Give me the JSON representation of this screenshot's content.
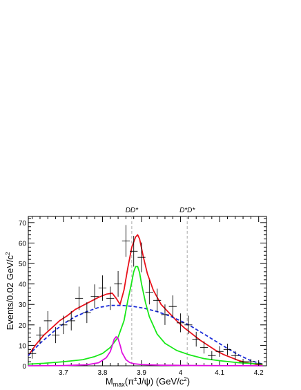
{
  "chart_data": {
    "type": "scatter",
    "xlabel_main": "M",
    "xlabel_sub": "max",
    "xlabel_rest": "(π",
    "xlabel_sup": "±",
    "xlabel_tail": "J/ψ) (GeV/c",
    "xlabel_sup2": "2",
    "xlabel_close": ")",
    "ylabel_main": "Events/0.02 GeV/c",
    "ylabel_sup": "2",
    "xlim": [
      3.61,
      4.22
    ],
    "ylim": [
      0,
      73
    ],
    "x_ticks": [
      3.7,
      3.8,
      3.9,
      4.0,
      4.1,
      4.2
    ],
    "x_tick_labels": [
      "3.7",
      "3.8",
      "3.9",
      "4",
      "4.1",
      "4.2"
    ],
    "y_ticks": [
      0,
      10,
      20,
      30,
      40,
      50,
      60,
      70
    ],
    "y_tick_labels": [
      "0",
      "10",
      "20",
      "30",
      "40",
      "50",
      "60",
      "70"
    ],
    "thresholds": [
      {
        "label": "DD*",
        "x": 3.875
      },
      {
        "label": "D*D*",
        "x": 4.017
      }
    ],
    "data_points": {
      "x": [
        3.62,
        3.64,
        3.66,
        3.68,
        3.7,
        3.72,
        3.74,
        3.76,
        3.78,
        3.8,
        3.82,
        3.84,
        3.86,
        3.88,
        3.9,
        3.92,
        3.94,
        3.96,
        3.98,
        4.0,
        4.02,
        4.04,
        4.06,
        4.08,
        4.1,
        4.12,
        4.14,
        4.16,
        4.18,
        4.2
      ],
      "y": [
        6,
        15,
        22,
        15,
        20,
        22,
        33,
        26,
        34,
        38,
        33,
        40,
        61,
        56,
        53,
        36,
        32,
        25,
        29,
        21,
        20,
        13,
        9,
        5,
        7,
        8,
        5,
        2,
        2,
        1
      ],
      "yerr": [
        2.5,
        4,
        4.7,
        3.9,
        4.5,
        4.7,
        5.7,
        5.1,
        5.8,
        6.2,
        5.7,
        6.3,
        7.8,
        7.5,
        7.3,
        6,
        5.7,
        5,
        5.4,
        4.6,
        4.5,
        3.6,
        3,
        2.2,
        2.6,
        2.8,
        2.2,
        1.4,
        1.4,
        1
      ]
    },
    "series": [
      {
        "name": "",
        "color": "#e8101a",
        "x": [
          3.61,
          3.63,
          3.65,
          3.67,
          3.69,
          3.71,
          3.73,
          3.75,
          3.77,
          3.79,
          3.81,
          3.825,
          3.835,
          3.845,
          3.855,
          3.865,
          3.875,
          3.885,
          3.89,
          3.895,
          3.905,
          3.915,
          3.93,
          3.95,
          3.97,
          3.99,
          4.01,
          4.03,
          4.05,
          4.07,
          4.09,
          4.11,
          4.13,
          4.15,
          4.17,
          4.19,
          4.21
        ],
        "y": [
          5,
          10.5,
          15,
          18.5,
          22,
          24.5,
          27.5,
          29.5,
          31.5,
          33.5,
          35,
          35.5,
          33,
          30,
          37,
          48,
          58,
          63,
          64,
          62,
          53,
          45,
          37,
          30,
          26,
          22,
          18.5,
          15.5,
          12.5,
          10,
          7.5,
          5.5,
          4,
          2.5,
          1.5,
          0.8,
          0.3
        ]
      },
      {
        "name": "",
        "color": "#1a2bd8",
        "dashed": true,
        "x": [
          3.61,
          3.64,
          3.67,
          3.7,
          3.73,
          3.76,
          3.79,
          3.82,
          3.85,
          3.88,
          3.91,
          3.94,
          3.97,
          4.0,
          4.03,
          4.06,
          4.09,
          4.12,
          4.15,
          4.18,
          4.21
        ],
        "y": [
          5,
          11,
          16,
          20.5,
          24,
          26.5,
          28.5,
          29.5,
          29.5,
          29,
          28,
          26.5,
          24.5,
          22,
          19,
          15.5,
          12,
          8.5,
          5.2,
          2.5,
          0.8
        ]
      },
      {
        "name": "",
        "color": "#18e818",
        "x": [
          3.61,
          3.65,
          3.7,
          3.75,
          3.78,
          3.8,
          3.82,
          3.84,
          3.855,
          3.865,
          3.875,
          3.88,
          3.885,
          3.89,
          3.895,
          3.9,
          3.91,
          3.92,
          3.94,
          3.96,
          3.99,
          4.02,
          4.06,
          4.1,
          4.15,
          4.21
        ],
        "y": [
          0.8,
          1.2,
          2,
          3,
          4.5,
          6,
          9,
          14,
          22,
          32,
          41,
          46,
          48.5,
          48.5,
          45.5,
          40,
          31,
          24,
          15.5,
          11,
          7.5,
          5.5,
          3.5,
          2.5,
          1.5,
          0.8
        ]
      },
      {
        "name": "",
        "color": "#e010e0",
        "x": [
          3.61,
          3.7,
          3.76,
          3.79,
          3.81,
          3.82,
          3.826,
          3.83,
          3.835,
          3.84,
          3.846,
          3.85,
          3.86,
          3.87,
          3.88,
          3.9,
          3.95,
          4.05,
          4.21
        ],
        "y": [
          0,
          0.1,
          0.5,
          1.5,
          4,
          7,
          10.5,
          13,
          14.2,
          13.2,
          9.5,
          6.5,
          3,
          1.6,
          1,
          0.6,
          0.3,
          0.1,
          0
        ]
      }
    ]
  }
}
